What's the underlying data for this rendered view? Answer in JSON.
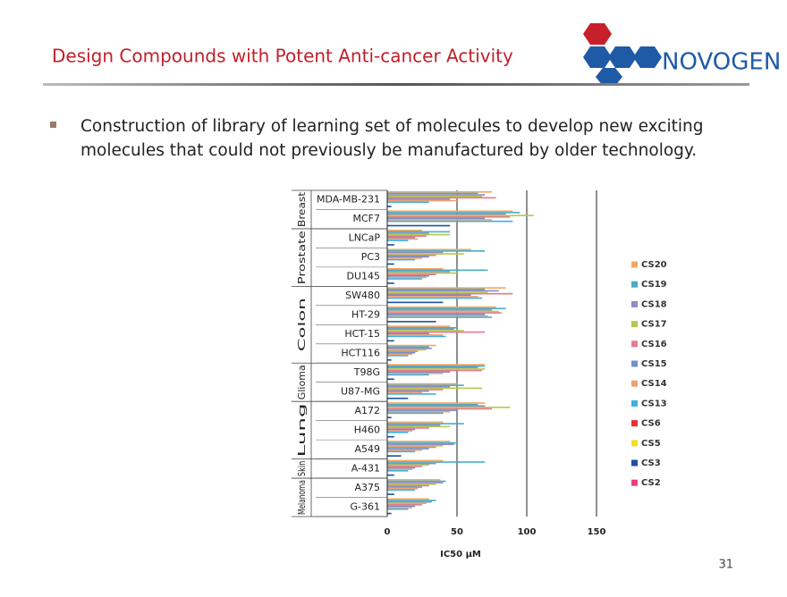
{
  "slide": {
    "title": "Design Compounds with Potent Anti-cancer Activity",
    "logo": "NOVOGEN",
    "bullet": [
      "Construction of library of learning set of molecules to develop new exciting",
      "molecules that could not previously be manufactured by older technology."
    ],
    "page_number": "31"
  },
  "chart_data": {
    "type": "bar",
    "orientation": "horizontal",
    "categories": [
      "MDA-MB-231",
      "MCF7",
      "LNCaP",
      "PC3",
      "DU145",
      "SW480",
      "HT-29",
      "HCT-15",
      "HCT116",
      "T98G",
      "U87-MG",
      "A172",
      "H460",
      "A549",
      "A-431",
      "A375",
      "G-361"
    ],
    "groups": [
      "Breast",
      null,
      "Prostate",
      null,
      null,
      "Colon",
      null,
      null,
      null,
      "Glioma",
      null,
      "Lung",
      null,
      null,
      "Skin",
      "Melanoma",
      null
    ],
    "xlabel": "IC50 µM",
    "xlim": [
      0,
      150
    ],
    "xticks": [
      0,
      50,
      100,
      150
    ],
    "grid": true,
    "legend": "right",
    "series": [
      {
        "name": "CS20",
        "color": "#f0a860",
        "values": [
          75,
          90,
          25,
          60,
          40,
          85,
          78,
          45,
          35,
          70,
          50,
          70,
          40,
          45,
          40,
          38,
          30
        ]
      },
      {
        "name": "CS19",
        "color": "#4bacc6",
        "values": [
          65,
          95,
          45,
          70,
          72,
          70,
          85,
          50,
          30,
          70,
          55,
          65,
          55,
          50,
          70,
          42,
          35
        ]
      },
      {
        "name": "CS18",
        "color": "#8c8cc8",
        "values": [
          70,
          85,
          30,
          40,
          45,
          80,
          75,
          48,
          32,
          65,
          45,
          70,
          38,
          48,
          35,
          40,
          32
        ]
      },
      {
        "name": "CS17",
        "color": "#b5c94c",
        "values": [
          68,
          105,
          45,
          55,
          50,
          72,
          80,
          55,
          28,
          70,
          68,
          88,
          45,
          40,
          30,
          35,
          28
        ]
      },
      {
        "name": "CS16",
        "color": "#e87a8a",
        "values": [
          78,
          88,
          28,
          35,
          35,
          90,
          82,
          70,
          22,
          68,
          40,
          75,
          30,
          35,
          25,
          30,
          25
        ]
      },
      {
        "name": "CS15",
        "color": "#6e8fc8",
        "values": [
          45,
          70,
          20,
          30,
          30,
          60,
          70,
          30,
          20,
          45,
          30,
          50,
          20,
          30,
          20,
          25,
          20
        ]
      },
      {
        "name": "CS14",
        "color": "#f2a070",
        "values": [
          50,
          75,
          22,
          25,
          28,
          65,
          72,
          40,
          18,
          40,
          25,
          45,
          18,
          25,
          18,
          22,
          18
        ]
      },
      {
        "name": "CS13",
        "color": "#40b0e0",
        "values": [
          30,
          90,
          15,
          20,
          25,
          68,
          75,
          42,
          15,
          30,
          35,
          40,
          15,
          20,
          15,
          20,
          15
        ]
      },
      {
        "name": "CS6",
        "color": "#e8303a",
        "values": [
          null,
          null,
          null,
          null,
          null,
          null,
          null,
          null,
          null,
          null,
          null,
          null,
          null,
          null,
          null,
          null,
          null
        ]
      },
      {
        "name": "CS5",
        "color": "#f0e020",
        "values": [
          null,
          null,
          null,
          null,
          null,
          null,
          null,
          null,
          null,
          null,
          null,
          null,
          null,
          null,
          null,
          null,
          null
        ]
      },
      {
        "name": "CS3",
        "color": "#2050a0",
        "values": [
          3,
          45,
          5,
          5,
          5,
          40,
          35,
          5,
          3,
          5,
          15,
          3,
          5,
          10,
          5,
          5,
          3
        ]
      },
      {
        "name": "CS2",
        "color": "#e8407a",
        "values": [
          null,
          null,
          null,
          null,
          null,
          null,
          null,
          null,
          null,
          null,
          null,
          null,
          null,
          null,
          null,
          null,
          null
        ]
      }
    ]
  }
}
